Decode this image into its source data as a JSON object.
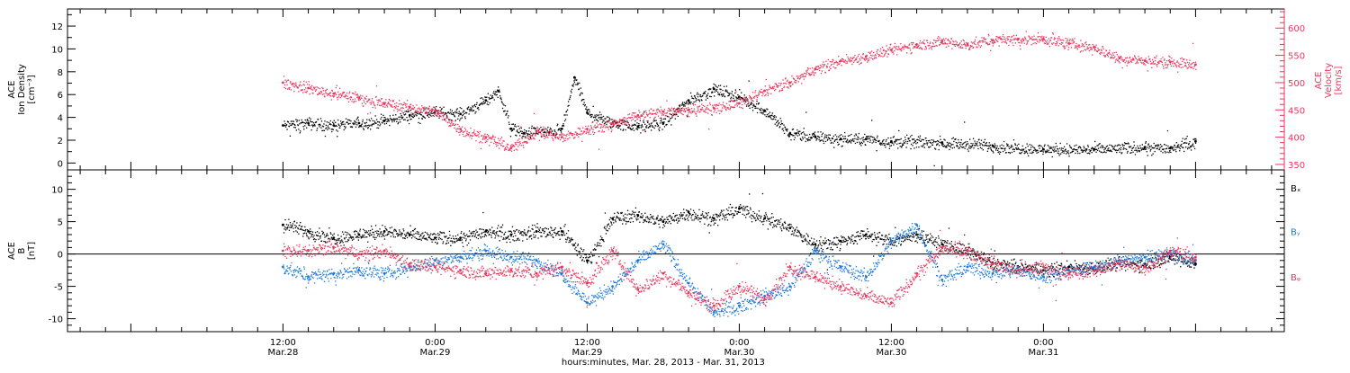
{
  "chart_data": [
    {
      "type": "scatter",
      "panel": "top",
      "ylabel_lines": [
        "ACE",
        "Ion Density",
        "[cm⁻³]"
      ],
      "ylim": [
        -0.6,
        13.5
      ],
      "yticks": [
        0,
        2,
        4,
        6,
        8,
        10,
        12
      ],
      "ylabel_right_lines": [
        "ACE",
        "Velocity",
        "[km/s]"
      ],
      "ylim_right": [
        340,
        635
      ],
      "yticks_right": [
        350,
        400,
        450,
        500,
        550,
        600
      ],
      "right_axis_color": "#e8365d",
      "series": [
        {
          "name": "",
          "color": "#000000",
          "axis": "left",
          "x": [
            0,
            2,
            4,
            6,
            8,
            10,
            12,
            14,
            16,
            17,
            18,
            19,
            20,
            21,
            22,
            23,
            24,
            26,
            28,
            30,
            32,
            34,
            36,
            38,
            40,
            42,
            44,
            46,
            48,
            52,
            56,
            60,
            64,
            68,
            70,
            72
          ],
          "y": [
            3.3,
            3.5,
            3.3,
            3.5,
            3.7,
            4.2,
            4.5,
            4.3,
            5.5,
            6.3,
            3.0,
            2.6,
            2.8,
            2.7,
            3.0,
            7.5,
            4.4,
            3.5,
            3.2,
            3.5,
            5.5,
            6.5,
            5.8,
            4.6,
            2.6,
            2.3,
            2.1,
            2.1,
            1.9,
            1.8,
            1.5,
            1.2,
            1.2,
            1.4,
            1.3,
            1.9
          ]
        },
        {
          "name": "",
          "color": "#e8365d",
          "axis": "right",
          "x": [
            0,
            2,
            4,
            6,
            8,
            10,
            12,
            14,
            16,
            18,
            20,
            22,
            24,
            26,
            28,
            30,
            32,
            34,
            36,
            38,
            40,
            42,
            44,
            46,
            48,
            50,
            52,
            54,
            56,
            58,
            60,
            62,
            64,
            66,
            68,
            70,
            72
          ],
          "y": [
            500,
            490,
            480,
            472,
            462,
            455,
            448,
            415,
            400,
            380,
            410,
            400,
            415,
            425,
            440,
            447,
            450,
            453,
            462,
            485,
            500,
            525,
            540,
            548,
            560,
            570,
            575,
            570,
            578,
            580,
            580,
            572,
            565,
            545,
            540,
            538,
            533
          ]
        }
      ]
    },
    {
      "type": "scatter",
      "panel": "bottom",
      "ylabel_lines": [
        "ACE",
        "B",
        "[nT]"
      ],
      "ylim": [
        -12,
        13
      ],
      "yticks": [
        -10,
        -5,
        0,
        5,
        10
      ],
      "zero_line": true,
      "series": [
        {
          "name": "Bₓ",
          "color": "#000000",
          "x": [
            0,
            2,
            4,
            6,
            8,
            10,
            12,
            14,
            16,
            18,
            20,
            22,
            24,
            26,
            28,
            30,
            32,
            34,
            36,
            38,
            40,
            42,
            44,
            46,
            48,
            50,
            52,
            54,
            56,
            58,
            60,
            62,
            64,
            66,
            68,
            70,
            72
          ],
          "y": [
            4.5,
            3.5,
            2.5,
            3.0,
            3.5,
            3.0,
            2.5,
            2.5,
            3.5,
            3.0,
            3.5,
            3.5,
            -1.0,
            5.5,
            6.0,
            5.0,
            6.5,
            5.5,
            7.0,
            5.5,
            4.0,
            1.5,
            2.0,
            3.0,
            2.0,
            3.0,
            1.5,
            0.5,
            -1.5,
            -2.0,
            -2.5,
            -2.0,
            -2.0,
            -1.5,
            -1.5,
            -0.5,
            -1.5
          ]
        },
        {
          "name": "Bᵧ",
          "color": "#1a78dc",
          "x": [
            0,
            2,
            4,
            6,
            8,
            10,
            12,
            14,
            16,
            18,
            20,
            22,
            24,
            26,
            28,
            30,
            32,
            34,
            36,
            38,
            40,
            42,
            44,
            46,
            48,
            50,
            52,
            54,
            56,
            58,
            60,
            62,
            64,
            66,
            68,
            70,
            72
          ],
          "y": [
            -2.0,
            -3.5,
            -3.0,
            -2.5,
            -3.0,
            -2.0,
            -1.0,
            -0.5,
            0.5,
            -0.5,
            -1.0,
            -3.0,
            -7.5,
            -5.0,
            -1.0,
            1.5,
            -4.5,
            -9.0,
            -8.0,
            -6.5,
            -5.0,
            0.5,
            -2.0,
            -3.5,
            2.0,
            4.5,
            -4.0,
            -2.0,
            -3.0,
            -2.5,
            -3.5,
            -2.5,
            -2.0,
            -1.0,
            -0.5,
            0.0,
            -1.0
          ]
        },
        {
          "name": "Bᵩ",
          "color": "#e8365d",
          "x": [
            0,
            2,
            4,
            6,
            8,
            10,
            12,
            14,
            16,
            18,
            20,
            22,
            24,
            26,
            28,
            30,
            32,
            34,
            36,
            38,
            40,
            42,
            44,
            46,
            48,
            50,
            52,
            54,
            56,
            58,
            60,
            62,
            64,
            66,
            68,
            70,
            72
          ],
          "y": [
            0.5,
            0.5,
            1.0,
            0.0,
            0.5,
            -1.5,
            -2.0,
            -2.5,
            -3.0,
            -2.5,
            -3.0,
            -2.0,
            -4.5,
            0.5,
            -5.5,
            -3.0,
            -6.0,
            -8.0,
            -5.0,
            -7.0,
            -2.0,
            -3.5,
            -5.0,
            -6.5,
            -7.5,
            -3.0,
            1.0,
            0.5,
            -1.5,
            -2.5,
            -2.0,
            -3.0,
            -2.5,
            -1.5,
            -2.0,
            0.5,
            -0.5
          ]
        }
      ]
    }
  ],
  "x_axis": {
    "range_hours": [
      -17,
      79
    ],
    "major_ticks_hours": [
      0,
      12,
      24,
      36,
      48,
      60,
      72
    ],
    "time_labels": [
      "12:00",
      "0:00",
      "12:00",
      "0:00",
      "12:00",
      "0:00"
    ],
    "date_labels": [
      "Mar.28",
      "Mar.29",
      "Mar.29",
      "Mar.30",
      "Mar.30",
      "Mar.31"
    ],
    "label_tick_hours": [
      0,
      12,
      24,
      36,
      48,
      60
    ],
    "xlabel": "hours:minutes, Mar. 28, 2013 - Mar. 31, 2013"
  }
}
